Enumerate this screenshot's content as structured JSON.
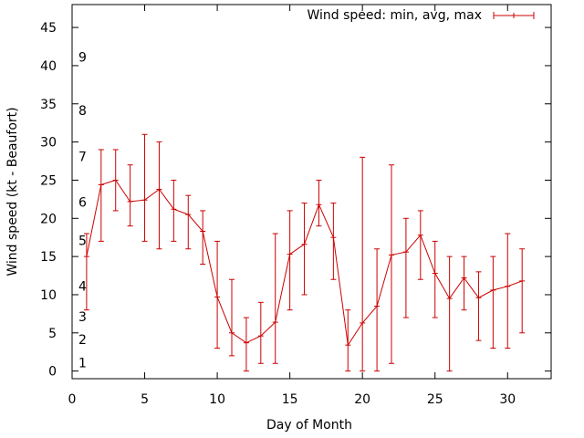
{
  "chart_data": {
    "type": "line",
    "title": "",
    "xlabel": "Day of Month",
    "ylabel": "Wind speed (kt - Beaufort)",
    "xlim": [
      0,
      33
    ],
    "ylim": [
      -1,
      48
    ],
    "xticks": [
      0,
      5,
      10,
      15,
      20,
      25,
      30
    ],
    "yticks": [
      0,
      5,
      10,
      15,
      20,
      25,
      30,
      35,
      40,
      45
    ],
    "grid": false,
    "legend": {
      "label": "Wind speed: min, avg, max",
      "position": "top-right"
    },
    "beaufort_scale": [
      {
        "label": "1",
        "y": 1
      },
      {
        "label": "2",
        "y": 4
      },
      {
        "label": "3",
        "y": 7
      },
      {
        "label": "4",
        "y": 11
      },
      {
        "label": "5",
        "y": 17
      },
      {
        "label": "6",
        "y": 22
      },
      {
        "label": "7",
        "y": 28
      },
      {
        "label": "8",
        "y": 34
      },
      {
        "label": "9",
        "y": 41
      }
    ],
    "series": [
      {
        "name": "Wind speed: min, avg, max",
        "color": "#cc0000",
        "x": [
          1,
          2,
          3,
          4,
          5,
          6,
          7,
          8,
          9,
          10,
          11,
          12,
          13,
          14,
          15,
          16,
          17,
          18,
          19,
          20,
          21,
          22,
          23,
          24,
          25,
          26,
          27,
          28,
          29,
          30,
          31
        ],
        "avg": [
          15,
          24.4,
          25,
          22.2,
          22.4,
          23.8,
          21.2,
          20.5,
          18.3,
          9.7,
          5,
          3.7,
          4.6,
          6.4,
          15.3,
          16.6,
          21.8,
          17.5,
          3.4,
          6.3,
          8.5,
          15.2,
          15.6,
          17.8,
          12.8,
          9.5,
          12.2,
          9.6,
          10.6,
          11.1,
          11.8
        ],
        "min": [
          8,
          17,
          21,
          19,
          17,
          16,
          17,
          16,
          14,
          3,
          2,
          0,
          1,
          1,
          8,
          10,
          19,
          12,
          0,
          0,
          0,
          1,
          7,
          12,
          7,
          0,
          8,
          4,
          3,
          3,
          5
        ],
        "max": [
          18,
          29,
          29,
          27,
          31,
          30,
          25,
          23,
          21,
          17,
          12,
          7,
          9,
          18,
          21,
          22,
          25,
          22,
          8,
          28,
          16,
          27,
          20,
          21,
          17,
          15,
          15,
          13,
          15,
          18,
          16
        ]
      }
    ]
  }
}
